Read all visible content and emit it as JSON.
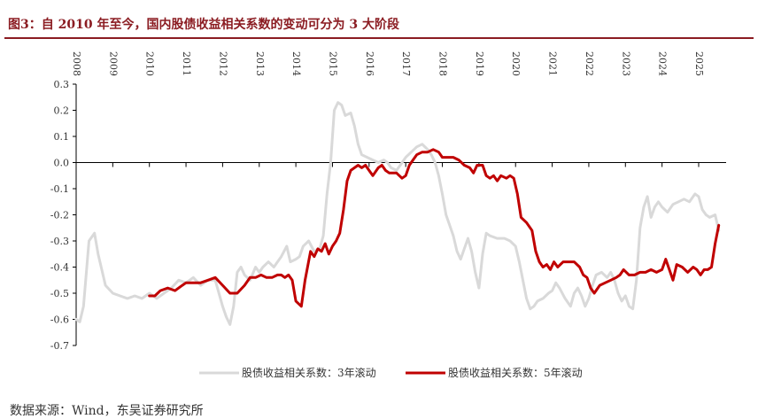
{
  "header": {
    "title": "图3：自 2010 年至今，国内股债收益相关系数的变动可分为 3 大阶段"
  },
  "footer": {
    "source": "数据来源：Wind，东吴证券研究所"
  },
  "colors": {
    "title": "#8b1c22",
    "series_3y": "#d9d9d9",
    "series_5y": "#c00000"
  },
  "chart_data": {
    "type": "line",
    "title": "",
    "xlabel": "",
    "ylabel": "",
    "xlim": [
      2008,
      2025.75
    ],
    "ylim": [
      -0.7,
      0.3
    ],
    "x_ticks": [
      "2008",
      "2009",
      "2010",
      "2011",
      "2012",
      "2013",
      "2014",
      "2015",
      "2016",
      "2017",
      "2018",
      "2019",
      "2020",
      "2021",
      "2022",
      "2023",
      "2024",
      "2025"
    ],
    "y_ticks": [
      "0.3",
      "0.2",
      "0.1",
      "0.0",
      "-0.1",
      "-0.2",
      "-0.3",
      "-0.4",
      "-0.5",
      "-0.6",
      "-0.7"
    ],
    "x_axis_position": "top",
    "zero_line": true,
    "legend_position": "bottom",
    "series": [
      {
        "name": "股债收益相关系数：3年滚动",
        "color": "#d9d9d9",
        "points": [
          [
            2008.0,
            -0.6
          ],
          [
            2008.1,
            -0.61
          ],
          [
            2008.2,
            -0.55
          ],
          [
            2008.35,
            -0.3
          ],
          [
            2008.5,
            -0.27
          ],
          [
            2008.6,
            -0.35
          ],
          [
            2008.8,
            -0.47
          ],
          [
            2009.0,
            -0.5
          ],
          [
            2009.2,
            -0.51
          ],
          [
            2009.4,
            -0.52
          ],
          [
            2009.6,
            -0.51
          ],
          [
            2009.8,
            -0.52
          ],
          [
            2010.0,
            -0.5
          ],
          [
            2010.2,
            -0.52
          ],
          [
            2010.4,
            -0.5
          ],
          [
            2010.6,
            -0.48
          ],
          [
            2010.8,
            -0.45
          ],
          [
            2011.0,
            -0.46
          ],
          [
            2011.2,
            -0.44
          ],
          [
            2011.4,
            -0.47
          ],
          [
            2011.6,
            -0.45
          ],
          [
            2011.8,
            -0.45
          ],
          [
            2012.0,
            -0.55
          ],
          [
            2012.1,
            -0.59
          ],
          [
            2012.2,
            -0.62
          ],
          [
            2012.3,
            -0.55
          ],
          [
            2012.4,
            -0.42
          ],
          [
            2012.5,
            -0.4
          ],
          [
            2012.6,
            -0.43
          ],
          [
            2012.75,
            -0.45
          ],
          [
            2012.9,
            -0.4
          ],
          [
            2013.0,
            -0.42
          ],
          [
            2013.1,
            -0.4
          ],
          [
            2013.25,
            -0.38
          ],
          [
            2013.4,
            -0.4
          ],
          [
            2013.5,
            -0.38
          ],
          [
            2013.6,
            -0.36
          ],
          [
            2013.75,
            -0.32
          ],
          [
            2013.85,
            -0.38
          ],
          [
            2014.0,
            -0.37
          ],
          [
            2014.1,
            -0.36
          ],
          [
            2014.2,
            -0.32
          ],
          [
            2014.35,
            -0.3
          ],
          [
            2014.5,
            -0.34
          ],
          [
            2014.65,
            -0.33
          ],
          [
            2014.75,
            -0.28
          ],
          [
            2014.85,
            -0.12
          ],
          [
            2014.95,
            0.0
          ],
          [
            2015.05,
            0.2
          ],
          [
            2015.15,
            0.23
          ],
          [
            2015.25,
            0.22
          ],
          [
            2015.35,
            0.18
          ],
          [
            2015.5,
            0.19
          ],
          [
            2015.6,
            0.14
          ],
          [
            2015.7,
            0.07
          ],
          [
            2015.8,
            0.03
          ],
          [
            2015.95,
            0.02
          ],
          [
            2016.1,
            0.01
          ],
          [
            2016.25,
            0.0
          ],
          [
            2016.4,
            0.01
          ],
          [
            2016.5,
            0.0
          ],
          [
            2016.6,
            -0.02
          ],
          [
            2016.75,
            -0.03
          ],
          [
            2016.85,
            -0.01
          ],
          [
            2017.0,
            0.02
          ],
          [
            2017.15,
            0.04
          ],
          [
            2017.3,
            0.06
          ],
          [
            2017.45,
            0.07
          ],
          [
            2017.6,
            0.05
          ],
          [
            2017.7,
            0.03
          ],
          [
            2017.8,
            0.0
          ],
          [
            2017.9,
            -0.05
          ],
          [
            2018.0,
            -0.12
          ],
          [
            2018.1,
            -0.2
          ],
          [
            2018.2,
            -0.24
          ],
          [
            2018.3,
            -0.28
          ],
          [
            2018.4,
            -0.34
          ],
          [
            2018.5,
            -0.37
          ],
          [
            2018.6,
            -0.33
          ],
          [
            2018.7,
            -0.29
          ],
          [
            2018.8,
            -0.34
          ],
          [
            2018.9,
            -0.42
          ],
          [
            2019.0,
            -0.48
          ],
          [
            2019.1,
            -0.35
          ],
          [
            2019.2,
            -0.27
          ],
          [
            2019.3,
            -0.28
          ],
          [
            2019.5,
            -0.29
          ],
          [
            2019.7,
            -0.29
          ],
          [
            2019.85,
            -0.3
          ],
          [
            2020.0,
            -0.32
          ],
          [
            2020.1,
            -0.38
          ],
          [
            2020.2,
            -0.45
          ],
          [
            2020.3,
            -0.52
          ],
          [
            2020.4,
            -0.56
          ],
          [
            2020.5,
            -0.55
          ],
          [
            2020.6,
            -0.53
          ],
          [
            2020.75,
            -0.52
          ],
          [
            2020.9,
            -0.5
          ],
          [
            2021.0,
            -0.49
          ],
          [
            2021.1,
            -0.46
          ],
          [
            2021.2,
            -0.48
          ],
          [
            2021.35,
            -0.52
          ],
          [
            2021.5,
            -0.55
          ],
          [
            2021.6,
            -0.5
          ],
          [
            2021.7,
            -0.48
          ],
          [
            2021.8,
            -0.51
          ],
          [
            2021.9,
            -0.55
          ],
          [
            2022.0,
            -0.52
          ],
          [
            2022.1,
            -0.47
          ],
          [
            2022.2,
            -0.43
          ],
          [
            2022.35,
            -0.42
          ],
          [
            2022.5,
            -0.44
          ],
          [
            2022.6,
            -0.42
          ],
          [
            2022.7,
            -0.45
          ],
          [
            2022.8,
            -0.5
          ],
          [
            2022.9,
            -0.53
          ],
          [
            2023.0,
            -0.51
          ],
          [
            2023.1,
            -0.55
          ],
          [
            2023.2,
            -0.56
          ],
          [
            2023.3,
            -0.45
          ],
          [
            2023.4,
            -0.25
          ],
          [
            2023.5,
            -0.17
          ],
          [
            2023.6,
            -0.13
          ],
          [
            2023.7,
            -0.21
          ],
          [
            2023.8,
            -0.17
          ],
          [
            2023.9,
            -0.15
          ],
          [
            2024.0,
            -0.17
          ],
          [
            2024.15,
            -0.19
          ],
          [
            2024.3,
            -0.16
          ],
          [
            2024.45,
            -0.15
          ],
          [
            2024.6,
            -0.14
          ],
          [
            2024.75,
            -0.15
          ],
          [
            2024.9,
            -0.12
          ],
          [
            2025.0,
            -0.13
          ],
          [
            2025.1,
            -0.18
          ],
          [
            2025.2,
            -0.2
          ],
          [
            2025.3,
            -0.21
          ],
          [
            2025.45,
            -0.2
          ],
          [
            2025.55,
            -0.26
          ]
        ]
      },
      {
        "name": "股债收益相关系数：5年滚动",
        "color": "#c00000",
        "points": [
          [
            2010.0,
            -0.51
          ],
          [
            2010.15,
            -0.51
          ],
          [
            2010.3,
            -0.49
          ],
          [
            2010.5,
            -0.48
          ],
          [
            2010.7,
            -0.49
          ],
          [
            2010.9,
            -0.47
          ],
          [
            2011.0,
            -0.46
          ],
          [
            2011.2,
            -0.46
          ],
          [
            2011.4,
            -0.46
          ],
          [
            2011.6,
            -0.45
          ],
          [
            2011.8,
            -0.44
          ],
          [
            2012.0,
            -0.47
          ],
          [
            2012.2,
            -0.5
          ],
          [
            2012.4,
            -0.5
          ],
          [
            2012.6,
            -0.47
          ],
          [
            2012.75,
            -0.44
          ],
          [
            2012.9,
            -0.44
          ],
          [
            2013.05,
            -0.43
          ],
          [
            2013.2,
            -0.44
          ],
          [
            2013.35,
            -0.44
          ],
          [
            2013.5,
            -0.43
          ],
          [
            2013.6,
            -0.43
          ],
          [
            2013.7,
            -0.44
          ],
          [
            2013.8,
            -0.43
          ],
          [
            2013.9,
            -0.45
          ],
          [
            2014.0,
            -0.53
          ],
          [
            2014.15,
            -0.55
          ],
          [
            2014.25,
            -0.45
          ],
          [
            2014.4,
            -0.34
          ],
          [
            2014.5,
            -0.36
          ],
          [
            2014.6,
            -0.33
          ],
          [
            2014.7,
            -0.34
          ],
          [
            2014.8,
            -0.31
          ],
          [
            2014.9,
            -0.35
          ],
          [
            2015.0,
            -0.32
          ],
          [
            2015.1,
            -0.3
          ],
          [
            2015.2,
            -0.27
          ],
          [
            2015.3,
            -0.18
          ],
          [
            2015.4,
            -0.07
          ],
          [
            2015.5,
            -0.03
          ],
          [
            2015.6,
            -0.02
          ],
          [
            2015.7,
            -0.01
          ],
          [
            2015.8,
            -0.02
          ],
          [
            2015.9,
            -0.01
          ],
          [
            2016.0,
            -0.03
          ],
          [
            2016.1,
            -0.05
          ],
          [
            2016.25,
            -0.02
          ],
          [
            2016.35,
            -0.01
          ],
          [
            2016.45,
            -0.03
          ],
          [
            2016.55,
            -0.04
          ],
          [
            2016.75,
            -0.04
          ],
          [
            2016.9,
            -0.06
          ],
          [
            2017.0,
            -0.05
          ],
          [
            2017.1,
            -0.01
          ],
          [
            2017.2,
            0.01
          ],
          [
            2017.3,
            0.03
          ],
          [
            2017.45,
            0.04
          ],
          [
            2017.6,
            0.04
          ],
          [
            2017.75,
            0.05
          ],
          [
            2017.9,
            0.04
          ],
          [
            2018.0,
            0.02
          ],
          [
            2018.15,
            0.02
          ],
          [
            2018.3,
            0.02
          ],
          [
            2018.45,
            0.01
          ],
          [
            2018.6,
            -0.01
          ],
          [
            2018.75,
            -0.02
          ],
          [
            2018.85,
            -0.04
          ],
          [
            2018.95,
            -0.01
          ],
          [
            2019.1,
            -0.01
          ],
          [
            2019.2,
            -0.05
          ],
          [
            2019.3,
            -0.06
          ],
          [
            2019.4,
            -0.05
          ],
          [
            2019.5,
            -0.07
          ],
          [
            2019.6,
            -0.05
          ],
          [
            2019.75,
            -0.06
          ],
          [
            2019.85,
            -0.05
          ],
          [
            2019.95,
            -0.06
          ],
          [
            2020.05,
            -0.12
          ],
          [
            2020.15,
            -0.21
          ],
          [
            2020.3,
            -0.23
          ],
          [
            2020.45,
            -0.26
          ],
          [
            2020.55,
            -0.34
          ],
          [
            2020.65,
            -0.38
          ],
          [
            2020.75,
            -0.4
          ],
          [
            2020.85,
            -0.39
          ],
          [
            2020.95,
            -0.41
          ],
          [
            2021.05,
            -0.38
          ],
          [
            2021.15,
            -0.4
          ],
          [
            2021.3,
            -0.38
          ],
          [
            2021.45,
            -0.38
          ],
          [
            2021.6,
            -0.38
          ],
          [
            2021.75,
            -0.4
          ],
          [
            2021.85,
            -0.43
          ],
          [
            2021.95,
            -0.44
          ],
          [
            2022.05,
            -0.48
          ],
          [
            2022.15,
            -0.5
          ],
          [
            2022.3,
            -0.47
          ],
          [
            2022.45,
            -0.46
          ],
          [
            2022.6,
            -0.45
          ],
          [
            2022.75,
            -0.44
          ],
          [
            2022.85,
            -0.43
          ],
          [
            2022.95,
            -0.41
          ],
          [
            2023.1,
            -0.43
          ],
          [
            2023.25,
            -0.43
          ],
          [
            2023.4,
            -0.42
          ],
          [
            2023.55,
            -0.42
          ],
          [
            2023.7,
            -0.41
          ],
          [
            2023.85,
            -0.42
          ],
          [
            2024.0,
            -0.41
          ],
          [
            2024.1,
            -0.37
          ],
          [
            2024.2,
            -0.41
          ],
          [
            2024.3,
            -0.45
          ],
          [
            2024.4,
            -0.39
          ],
          [
            2024.55,
            -0.4
          ],
          [
            2024.7,
            -0.42
          ],
          [
            2024.85,
            -0.4
          ],
          [
            2024.95,
            -0.41
          ],
          [
            2025.05,
            -0.43
          ],
          [
            2025.15,
            -0.41
          ],
          [
            2025.25,
            -0.41
          ],
          [
            2025.35,
            -0.4
          ],
          [
            2025.45,
            -0.31
          ],
          [
            2025.55,
            -0.24
          ]
        ]
      }
    ]
  }
}
